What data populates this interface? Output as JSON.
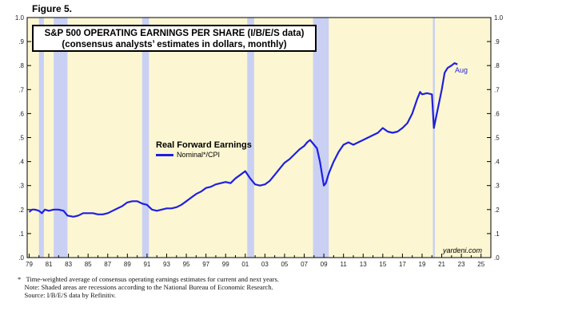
{
  "figure_label": "Figure 5.",
  "title_line1": "S&P 500 OPERATING EARNINGS PER SHARE (I/B/E/S data)",
  "title_line2": "(consensus analysts’ estimates in dollars, monthly)",
  "annotation_last": "Aug",
  "credit": "yardeni.com",
  "footnotes": [
    "*   Time-weighted average of consensus operating earnings estimates for current and next years.",
    "    Note: Shaded areas are recessions according to the National Bureau of Economic Research.",
    "    Source: I/B/E/S data by Refinitiv."
  ],
  "colors": {
    "line": "#1f1fe0",
    "plot_bg": "#fcf7d2",
    "recession": "#c9d0f3"
  },
  "chart_data": {
    "type": "line",
    "legend_title": "Real Forward Earnings",
    "legend_placement": "center-left",
    "ylim": [
      0,
      1.0
    ],
    "yticks": [
      {
        "value": 0.0,
        "label": ".0"
      },
      {
        "value": 0.1,
        "label": ".1"
      },
      {
        "value": 0.2,
        "label": ".2"
      },
      {
        "value": 0.3,
        "label": ".3"
      },
      {
        "value": 0.4,
        "label": ".4"
      },
      {
        "value": 0.5,
        "label": ".5"
      },
      {
        "value": 0.6,
        "label": ".6"
      },
      {
        "value": 0.7,
        "label": ".7"
      },
      {
        "value": 0.8,
        "label": ".8"
      },
      {
        "value": 0.9,
        "label": ".9"
      },
      {
        "value": 1.0,
        "label": "1.0"
      }
    ],
    "xlim": [
      1978.8,
      2026.0
    ],
    "xticks": [
      {
        "value": 1979,
        "label": "79"
      },
      {
        "value": 1981,
        "label": "81"
      },
      {
        "value": 1983,
        "label": "83"
      },
      {
        "value": 1985,
        "label": "85"
      },
      {
        "value": 1987,
        "label": "87"
      },
      {
        "value": 1989,
        "label": "89"
      },
      {
        "value": 1991,
        "label": "91"
      },
      {
        "value": 1993,
        "label": "93"
      },
      {
        "value": 1995,
        "label": "95"
      },
      {
        "value": 1997,
        "label": "97"
      },
      {
        "value": 1999,
        "label": "99"
      },
      {
        "value": 2001,
        "label": "01"
      },
      {
        "value": 2003,
        "label": "03"
      },
      {
        "value": 2005,
        "label": "05"
      },
      {
        "value": 2007,
        "label": "07"
      },
      {
        "value": 2009,
        "label": "09"
      },
      {
        "value": 2011,
        "label": "11"
      },
      {
        "value": 2013,
        "label": "13"
      },
      {
        "value": 2015,
        "label": "15"
      },
      {
        "value": 2017,
        "label": "17"
      },
      {
        "value": 2019,
        "label": "19"
      },
      {
        "value": 2021,
        "label": "21"
      },
      {
        "value": 2023,
        "label": "23"
      },
      {
        "value": 2025,
        "label": "25"
      }
    ],
    "recessions": [
      [
        1980.0,
        1980.5
      ],
      [
        1981.5,
        1982.9
      ],
      [
        1990.5,
        1991.2
      ],
      [
        2001.2,
        2001.9
      ],
      [
        2007.9,
        2009.5
      ],
      [
        2020.1,
        2020.3
      ]
    ],
    "series": [
      {
        "name": "Nominal*/CPI",
        "x": [
          1979.0,
          1979.3,
          1979.6,
          1980.0,
          1980.3,
          1980.4,
          1980.6,
          1981.0,
          1981.5,
          1982.0,
          1982.5,
          1982.9,
          1983.5,
          1984.0,
          1984.5,
          1985.0,
          1985.5,
          1986.0,
          1986.5,
          1987.0,
          1987.5,
          1988.0,
          1988.5,
          1989.0,
          1989.5,
          1990.0,
          1990.5,
          1991.0,
          1991.5,
          1992.0,
          1992.5,
          1993.0,
          1993.5,
          1994.0,
          1994.5,
          1995.0,
          1995.5,
          1996.0,
          1996.5,
          1997.0,
          1997.5,
          1998.0,
          1998.5,
          1999.0,
          1999.5,
          2000.0,
          2000.5,
          2001.0,
          2001.5,
          2002.0,
          2002.5,
          2003.0,
          2003.5,
          2004.0,
          2004.5,
          2005.0,
          2005.5,
          2006.0,
          2006.5,
          2007.0,
          2007.3,
          2007.6,
          2008.0,
          2008.3,
          2008.6,
          2009.0,
          2009.2,
          2009.5,
          2009.8,
          2010.0,
          2010.5,
          2011.0,
          2011.5,
          2012.0,
          2012.5,
          2013.0,
          2013.5,
          2014.0,
          2014.5,
          2015.0,
          2015.5,
          2016.0,
          2016.5,
          2017.0,
          2017.5,
          2018.0,
          2018.5,
          2018.8,
          2019.0,
          2019.5,
          2020.0,
          2020.2,
          2020.4,
          2020.7,
          2021.0,
          2021.3,
          2021.6,
          2022.0,
          2022.3,
          2022.6
        ],
        "y": [
          0.19,
          0.2,
          0.2,
          0.195,
          0.185,
          0.19,
          0.2,
          0.195,
          0.2,
          0.2,
          0.195,
          0.175,
          0.17,
          0.175,
          0.185,
          0.185,
          0.185,
          0.18,
          0.18,
          0.185,
          0.195,
          0.205,
          0.215,
          0.23,
          0.235,
          0.235,
          0.225,
          0.22,
          0.2,
          0.195,
          0.2,
          0.205,
          0.205,
          0.21,
          0.22,
          0.235,
          0.25,
          0.265,
          0.275,
          0.29,
          0.295,
          0.305,
          0.31,
          0.315,
          0.31,
          0.33,
          0.345,
          0.36,
          0.33,
          0.305,
          0.3,
          0.305,
          0.32,
          0.345,
          0.37,
          0.395,
          0.41,
          0.43,
          0.45,
          0.465,
          0.48,
          0.49,
          0.47,
          0.455,
          0.4,
          0.3,
          0.31,
          0.35,
          0.38,
          0.4,
          0.44,
          0.47,
          0.48,
          0.47,
          0.48,
          0.49,
          0.5,
          0.51,
          0.52,
          0.54,
          0.525,
          0.52,
          0.525,
          0.54,
          0.56,
          0.6,
          0.66,
          0.69,
          0.68,
          0.685,
          0.68,
          0.54,
          0.58,
          0.64,
          0.7,
          0.77,
          0.79,
          0.8,
          0.81,
          0.805
        ]
      }
    ]
  }
}
